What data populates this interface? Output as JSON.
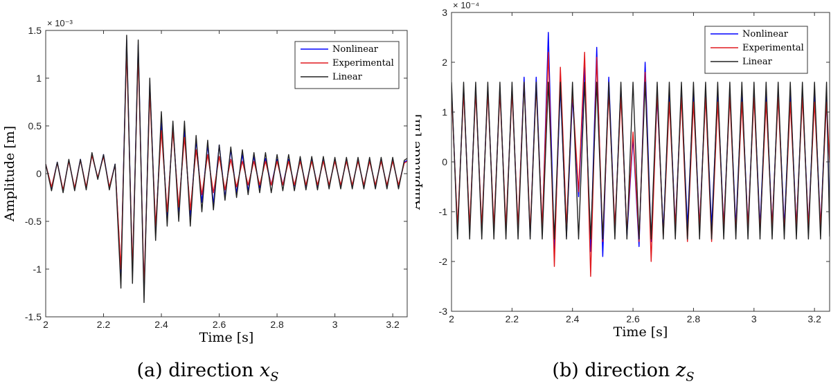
{
  "charts": {
    "a": {
      "caption_prefix": "(a) direction ",
      "caption_var": "x",
      "caption_sub": "S"
    },
    "b": {
      "caption_prefix": "(b) direction ",
      "caption_var": "z",
      "caption_sub": "S"
    }
  },
  "chart_data": [
    {
      "type": "line",
      "title": "",
      "xlabel": "Time [s]",
      "ylabel": "Amplitude [m]",
      "y_multiplier_label": "× 10⁻³",
      "xlim": [
        2,
        3.25
      ],
      "ylim": [
        -1.5,
        1.5
      ],
      "xticks": [
        2,
        2.2,
        2.4,
        2.6,
        2.8,
        3,
        3.2
      ],
      "xtick_labels": [
        "2",
        "2.2",
        "2.4",
        "2.6",
        "2.8",
        "3",
        "3.2"
      ],
      "yticks": [
        -1.5,
        -1,
        -0.5,
        0,
        0.5,
        1,
        1.5
      ],
      "ytick_labels": [
        "-1.5",
        "-1",
        "-0.5",
        "0",
        "0.5",
        "1",
        "1.5"
      ],
      "legend_position": "top-right",
      "grid": false,
      "series": [
        {
          "name": "Nonlinear",
          "color": "#0000ff",
          "x": [
            2,
            2.02,
            2.04,
            2.06,
            2.08,
            2.1,
            2.12,
            2.14,
            2.16,
            2.18,
            2.2,
            2.22,
            2.24,
            2.26,
            2.28,
            2.3,
            2.32,
            2.34,
            2.36,
            2.38,
            2.4,
            2.42,
            2.44,
            2.46,
            2.48,
            2.5,
            2.52,
            2.54,
            2.56,
            2.58,
            2.6,
            2.62,
            2.64,
            2.66,
            2.68,
            2.7,
            2.72,
            2.74,
            2.76,
            2.78,
            2.8,
            2.82,
            2.84,
            2.86,
            2.88,
            2.9,
            2.92,
            2.94,
            2.96,
            2.98,
            3,
            3.02,
            3.04,
            3.06,
            3.08,
            3.1,
            3.12,
            3.14,
            3.16,
            3.18,
            3.2,
            3.22,
            3.24,
            3.25
          ],
          "values": [
            0.1,
            -0.15,
            0.12,
            -0.18,
            0.14,
            -0.16,
            0.15,
            -0.15,
            0.2,
            -0.05,
            0.2,
            -0.15,
            0.1,
            -1.05,
            1.4,
            -1.05,
            1.35,
            -1.25,
            0.95,
            -0.6,
            0.55,
            -0.45,
            0.5,
            -0.4,
            0.45,
            -0.45,
            0.35,
            -0.3,
            0.3,
            -0.32,
            0.3,
            -0.25,
            0.25,
            -0.2,
            0.2,
            -0.18,
            0.18,
            -0.15,
            0.16,
            -0.12,
            0.15,
            -0.12,
            0.15,
            -0.13,
            0.15,
            -0.13,
            0.15,
            -0.13,
            0.14,
            -0.13,
            0.14,
            -0.13,
            0.14,
            -0.13,
            0.14,
            -0.13,
            0.14,
            -0.13,
            0.14,
            -0.13,
            0.14,
            -0.13,
            0.12,
            0.14
          ]
        },
        {
          "name": "Experimental",
          "color": "#e0191e",
          "x": [
            2,
            2.02,
            2.04,
            2.06,
            2.08,
            2.1,
            2.12,
            2.14,
            2.16,
            2.18,
            2.2,
            2.22,
            2.24,
            2.26,
            2.28,
            2.3,
            2.32,
            2.34,
            2.36,
            2.38,
            2.4,
            2.42,
            2.44,
            2.46,
            2.48,
            2.5,
            2.52,
            2.54,
            2.56,
            2.58,
            2.6,
            2.62,
            2.64,
            2.66,
            2.68,
            2.7,
            2.72,
            2.74,
            2.76,
            2.78,
            2.8,
            2.82,
            2.84,
            2.86,
            2.88,
            2.9,
            2.92,
            2.94,
            2.96,
            2.98,
            3,
            3.02,
            3.04,
            3.06,
            3.08,
            3.1,
            3.12,
            3.14,
            3.16,
            3.18,
            3.2,
            3.22,
            3.24,
            3.25
          ],
          "values": [
            0.1,
            -0.14,
            0.11,
            -0.17,
            0.13,
            -0.15,
            0.14,
            -0.14,
            0.19,
            -0.04,
            0.18,
            -0.14,
            0.09,
            -1.0,
            1.3,
            -1.0,
            1.25,
            -1.2,
            0.85,
            -0.55,
            0.45,
            -0.4,
            0.45,
            -0.35,
            0.38,
            -0.38,
            0.25,
            -0.22,
            0.2,
            -0.2,
            0.18,
            -0.17,
            0.15,
            -0.14,
            0.13,
            -0.12,
            0.13,
            -0.12,
            0.13,
            -0.12,
            0.13,
            -0.12,
            0.13,
            -0.12,
            0.13,
            -0.12,
            0.13,
            -0.12,
            0.13,
            -0.12,
            0.13,
            -0.12,
            0.13,
            -0.12,
            0.13,
            -0.12,
            0.13,
            -0.12,
            0.13,
            -0.12,
            0.13,
            -0.12,
            0.11,
            0.13
          ]
        },
        {
          "name": "Linear",
          "color": "#222222",
          "x": [
            2,
            2.02,
            2.04,
            2.06,
            2.08,
            2.1,
            2.12,
            2.14,
            2.16,
            2.18,
            2.2,
            2.22,
            2.24,
            2.26,
            2.28,
            2.3,
            2.32,
            2.34,
            2.36,
            2.38,
            2.4,
            2.42,
            2.44,
            2.46,
            2.48,
            2.5,
            2.52,
            2.54,
            2.56,
            2.58,
            2.6,
            2.62,
            2.64,
            2.66,
            2.68,
            2.7,
            2.72,
            2.74,
            2.76,
            2.78,
            2.8,
            2.82,
            2.84,
            2.86,
            2.88,
            2.9,
            2.92,
            2.94,
            2.96,
            2.98,
            3,
            3.02,
            3.04,
            3.06,
            3.08,
            3.1,
            3.12,
            3.14,
            3.16,
            3.18,
            3.2,
            3.22,
            3.24,
            3.25
          ],
          "values": [
            0.1,
            -0.18,
            0.12,
            -0.2,
            0.15,
            -0.18,
            0.15,
            -0.17,
            0.22,
            -0.06,
            0.2,
            -0.17,
            0.1,
            -1.2,
            1.45,
            -1.15,
            1.4,
            -1.35,
            1.0,
            -0.7,
            0.65,
            -0.55,
            0.55,
            -0.5,
            0.55,
            -0.55,
            0.4,
            -0.4,
            0.35,
            -0.38,
            0.3,
            -0.28,
            0.28,
            -0.25,
            0.25,
            -0.22,
            0.22,
            -0.2,
            0.22,
            -0.2,
            0.2,
            -0.18,
            0.2,
            -0.18,
            0.18,
            -0.17,
            0.18,
            -0.17,
            0.18,
            -0.16,
            0.17,
            -0.16,
            0.17,
            -0.16,
            0.17,
            -0.16,
            0.17,
            -0.16,
            0.17,
            -0.16,
            0.17,
            -0.16,
            0.14,
            0.16
          ]
        }
      ]
    },
    {
      "type": "line",
      "title": "",
      "xlabel": "Time [s]",
      "ylabel": "Amplitude [m]",
      "y_multiplier_label": "× 10⁻⁴",
      "xlim": [
        2,
        3.25
      ],
      "ylim": [
        -3,
        3
      ],
      "xticks": [
        2,
        2.2,
        2.4,
        2.6,
        2.8,
        3,
        3.2
      ],
      "xtick_labels": [
        "2",
        "2.2",
        "2.4",
        "2.6",
        "2.8",
        "3",
        "3.2"
      ],
      "yticks": [
        -3,
        -2,
        -1,
        0,
        1,
        2,
        3
      ],
      "ytick_labels": [
        "-3",
        "-2",
        "-1",
        "0",
        "1",
        "2",
        "3"
      ],
      "legend_position": "top-right",
      "grid": false,
      "series": [
        {
          "name": "Nonlinear",
          "color": "#0000ff",
          "x": [
            2,
            2.02,
            2.04,
            2.06,
            2.08,
            2.1,
            2.12,
            2.14,
            2.16,
            2.18,
            2.2,
            2.22,
            2.24,
            2.26,
            2.28,
            2.3,
            2.32,
            2.34,
            2.36,
            2.38,
            2.4,
            2.42,
            2.44,
            2.46,
            2.48,
            2.5,
            2.52,
            2.54,
            2.56,
            2.58,
            2.6,
            2.62,
            2.64,
            2.66,
            2.68,
            2.7,
            2.72,
            2.74,
            2.76,
            2.78,
            2.8,
            2.82,
            2.84,
            2.86,
            2.88,
            2.9,
            2.92,
            2.94,
            2.96,
            2.98,
            3,
            3.02,
            3.04,
            3.06,
            3.08,
            3.1,
            3.12,
            3.14,
            3.16,
            3.18,
            3.2,
            3.22,
            3.24,
            3.25
          ],
          "values": [
            1.5,
            -1.4,
            1.5,
            -1.4,
            1.5,
            -1.4,
            1.5,
            -1.4,
            1.5,
            -1.4,
            1.5,
            -1.4,
            1.7,
            -1.5,
            1.7,
            -1.4,
            2.6,
            -1.8,
            1.5,
            -1.5,
            1.3,
            -0.7,
            1.9,
            -1.8,
            2.3,
            -1.9,
            1.7,
            -1.4,
            1.5,
            -1.5,
            0.5,
            -1.7,
            2.0,
            -1.6,
            1.3,
            -1.4,
            1.4,
            -1.3,
            1.4,
            -1.3,
            1.4,
            -1.3,
            1.4,
            -1.3,
            1.4,
            -1.3,
            1.4,
            -1.3,
            1.4,
            -1.3,
            1.4,
            -1.3,
            1.4,
            -1.3,
            1.4,
            -1.3,
            1.4,
            -1.3,
            1.4,
            -1.3,
            1.4,
            -1.3,
            1.4,
            -1.2
          ]
        },
        {
          "name": "Experimental",
          "color": "#e0191e",
          "x": [
            2,
            2.02,
            2.04,
            2.06,
            2.08,
            2.1,
            2.12,
            2.14,
            2.16,
            2.18,
            2.2,
            2.22,
            2.24,
            2.26,
            2.28,
            2.3,
            2.32,
            2.34,
            2.36,
            2.38,
            2.4,
            2.42,
            2.44,
            2.46,
            2.48,
            2.5,
            2.52,
            2.54,
            2.56,
            2.58,
            2.6,
            2.62,
            2.64,
            2.66,
            2.68,
            2.7,
            2.72,
            2.74,
            2.76,
            2.78,
            2.8,
            2.82,
            2.84,
            2.86,
            2.88,
            2.9,
            2.92,
            2.94,
            2.96,
            2.98,
            3,
            3.02,
            3.04,
            3.06,
            3.08,
            3.1,
            3.12,
            3.14,
            3.16,
            3.18,
            3.2,
            3.22,
            3.24,
            3.25
          ],
          "values": [
            1.4,
            -1.3,
            1.4,
            -1.3,
            1.4,
            -1.3,
            1.4,
            -1.3,
            1.4,
            -1.3,
            1.4,
            -1.3,
            1.6,
            -1.4,
            1.5,
            -1.3,
            2.2,
            -2.1,
            1.9,
            -1.3,
            1.4,
            -0.6,
            2.2,
            -2.3,
            2.1,
            -1.6,
            1.4,
            -1.3,
            1.3,
            -1.4,
            0.6,
            -1.6,
            1.8,
            -2.0,
            1.4,
            -1.5,
            1.2,
            -1.3,
            1.3,
            -1.6,
            1.2,
            -1.3,
            1.3,
            -1.6,
            1.2,
            -1.3,
            1.3,
            -1.4,
            1.2,
            -1.3,
            1.3,
            -1.4,
            1.2,
            -1.3,
            1.3,
            -1.4,
            1.2,
            -1.3,
            1.3,
            -1.3,
            1.2,
            -1.3,
            1.2,
            0.0
          ]
        },
        {
          "name": "Linear",
          "color": "#222222",
          "x": [
            2,
            2.02,
            2.04,
            2.06,
            2.08,
            2.1,
            2.12,
            2.14,
            2.16,
            2.18,
            2.2,
            2.22,
            2.24,
            2.26,
            2.28,
            2.3,
            2.32,
            2.34,
            2.36,
            2.38,
            2.4,
            2.42,
            2.44,
            2.46,
            2.48,
            2.5,
            2.52,
            2.54,
            2.56,
            2.58,
            2.6,
            2.62,
            2.64,
            2.66,
            2.68,
            2.7,
            2.72,
            2.74,
            2.76,
            2.78,
            2.8,
            2.82,
            2.84,
            2.86,
            2.88,
            2.9,
            2.92,
            2.94,
            2.96,
            2.98,
            3,
            3.02,
            3.04,
            3.06,
            3.08,
            3.1,
            3.12,
            3.14,
            3.16,
            3.18,
            3.2,
            3.22,
            3.24,
            3.25
          ],
          "values": [
            1.6,
            -1.55,
            1.6,
            -1.55,
            1.6,
            -1.55,
            1.6,
            -1.55,
            1.6,
            -1.55,
            1.6,
            -1.55,
            1.6,
            -1.55,
            1.6,
            -1.55,
            1.6,
            -1.55,
            1.6,
            -1.55,
            1.6,
            -1.55,
            1.6,
            -1.55,
            1.6,
            -1.55,
            1.6,
            -1.55,
            1.6,
            -1.55,
            1.6,
            -1.55,
            1.6,
            -1.55,
            1.6,
            -1.55,
            1.6,
            -1.55,
            1.6,
            -1.55,
            1.6,
            -1.55,
            1.6,
            -1.55,
            1.6,
            -1.55,
            1.6,
            -1.55,
            1.6,
            -1.55,
            1.6,
            -1.55,
            1.6,
            -1.55,
            1.6,
            -1.55,
            1.6,
            -1.55,
            1.6,
            -1.55,
            1.6,
            -1.55,
            1.6,
            -1.5
          ]
        }
      ]
    }
  ]
}
